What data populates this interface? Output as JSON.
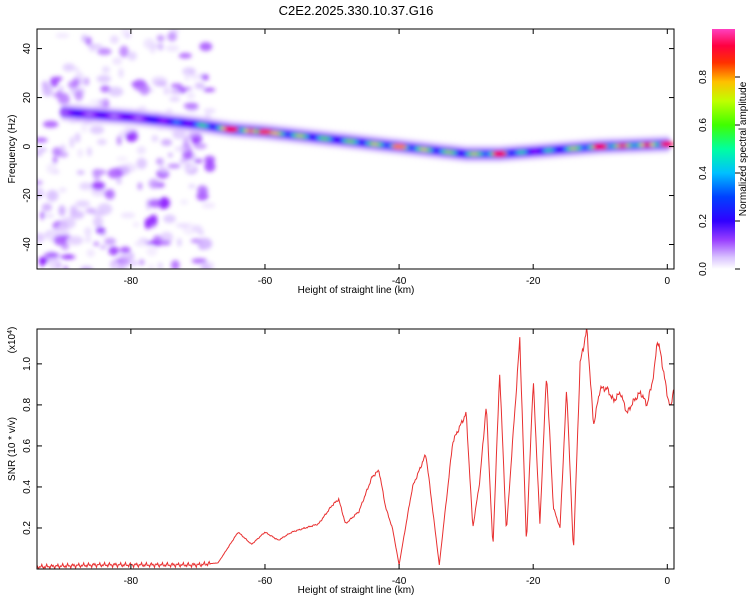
{
  "figure": {
    "title": "C2E2.2025.330.10.37.G16"
  },
  "chart_data": [
    {
      "type": "heatmap",
      "xlabel": "Height of straight line (km)",
      "ylabel": "Frequency (Hz)",
      "xlim": [
        -94,
        1
      ],
      "ylim": [
        -50,
        48
      ],
      "xticks": [
        -80,
        -60,
        -40,
        -20,
        0
      ],
      "xtick_labels": [
        "-80",
        "-60",
        "-40",
        "-20",
        "0"
      ],
      "yticks": [
        40,
        20,
        0,
        -20,
        -40
      ],
      "ytick_labels": [
        "40",
        "20",
        "0",
        "-20",
        "-40"
      ],
      "colorbar": {
        "label": "Normalized spectral amplitude",
        "range": [
          0,
          1
        ],
        "ticks": [
          0.0,
          0.2,
          0.4,
          0.6,
          0.8
        ],
        "tick_labels": [
          "0.0",
          "0.2",
          "0.4",
          "0.6",
          "0.8"
        ],
        "colors": [
          "#ffffff",
          "#d0b0ff",
          "#8000ff",
          "#0000ff",
          "#00b0ff",
          "#00ff80",
          "#80ff00",
          "#ffff00",
          "#ff8000",
          "#ff0000",
          "#ff0080"
        ]
      },
      "ridge": {
        "name": "dominant frequency",
        "x": [
          -90,
          -80,
          -70,
          -65,
          -60,
          -50,
          -40,
          -30,
          -25,
          -20,
          -10,
          0
        ],
        "y": [
          14,
          12,
          9,
          7,
          6,
          3,
          0,
          -3,
          -3,
          -2,
          0,
          1
        ],
        "amplitude": [
          0.3,
          0.25,
          0.5,
          0.9,
          0.85,
          0.6,
          0.8,
          0.65,
          0.9,
          0.4,
          0.9,
          0.95
        ]
      },
      "noise_region": {
        "x": [
          -94,
          -68
        ],
        "y": [
          -50,
          48
        ],
        "amplitude": 0.1
      }
    },
    {
      "type": "line",
      "xlabel": "Height of straight line (km)",
      "ylabel": "SNR (10 * v/v)",
      "multiplier_label": "(x10",
      "multiplier_exp": "4",
      "multiplier_close": ")",
      "xlim": [
        -94,
        1
      ],
      "ylim": [
        0,
        1.17
      ],
      "xticks": [
        -80,
        -60,
        -40,
        -20,
        0
      ],
      "xtick_labels": [
        "-80",
        "-60",
        "-40",
        "-20",
        "0"
      ],
      "yticks": [
        0.2,
        0.4,
        0.6,
        0.8,
        1.0
      ],
      "ytick_labels": [
        "0.2",
        "0.4",
        "0.6",
        "0.8",
        "1.0"
      ],
      "series": [
        {
          "name": "SNR",
          "color": "#e83030",
          "x": [
            -94,
            -90,
            -85,
            -80,
            -75,
            -70,
            -67,
            -65,
            -64,
            -62,
            -60,
            -58,
            -56,
            -54,
            -52,
            -50,
            -49,
            -48,
            -46,
            -44,
            -43,
            -42,
            -41,
            -40,
            -38,
            -36,
            -34,
            -32,
            -30,
            -29,
            -28,
            -27,
            -26,
            -25,
            -24,
            -22,
            -21,
            -20,
            -19,
            -18,
            -17,
            -16,
            -15,
            -14,
            -13,
            -12,
            -11,
            -10,
            -9,
            -8,
            -7,
            -6,
            -5,
            -4,
            -3,
            -2,
            -1.5,
            -1,
            0,
            0.5,
            1
          ],
          "y": [
            0.01,
            0.015,
            0.02,
            0.02,
            0.02,
            0.02,
            0.03,
            0.13,
            0.18,
            0.12,
            0.18,
            0.14,
            0.18,
            0.2,
            0.22,
            0.31,
            0.34,
            0.22,
            0.28,
            0.45,
            0.48,
            0.3,
            0.2,
            0.02,
            0.4,
            0.56,
            0.02,
            0.62,
            0.76,
            0.2,
            0.42,
            0.8,
            0.1,
            0.96,
            0.18,
            1.12,
            0.12,
            0.92,
            0.22,
            0.96,
            0.3,
            0.2,
            0.88,
            0.08,
            1.0,
            1.17,
            0.7,
            0.88,
            0.88,
            0.82,
            0.86,
            0.76,
            0.82,
            0.86,
            0.8,
            0.95,
            1.12,
            1.05,
            0.85,
            0.78,
            0.9
          ]
        }
      ]
    }
  ]
}
